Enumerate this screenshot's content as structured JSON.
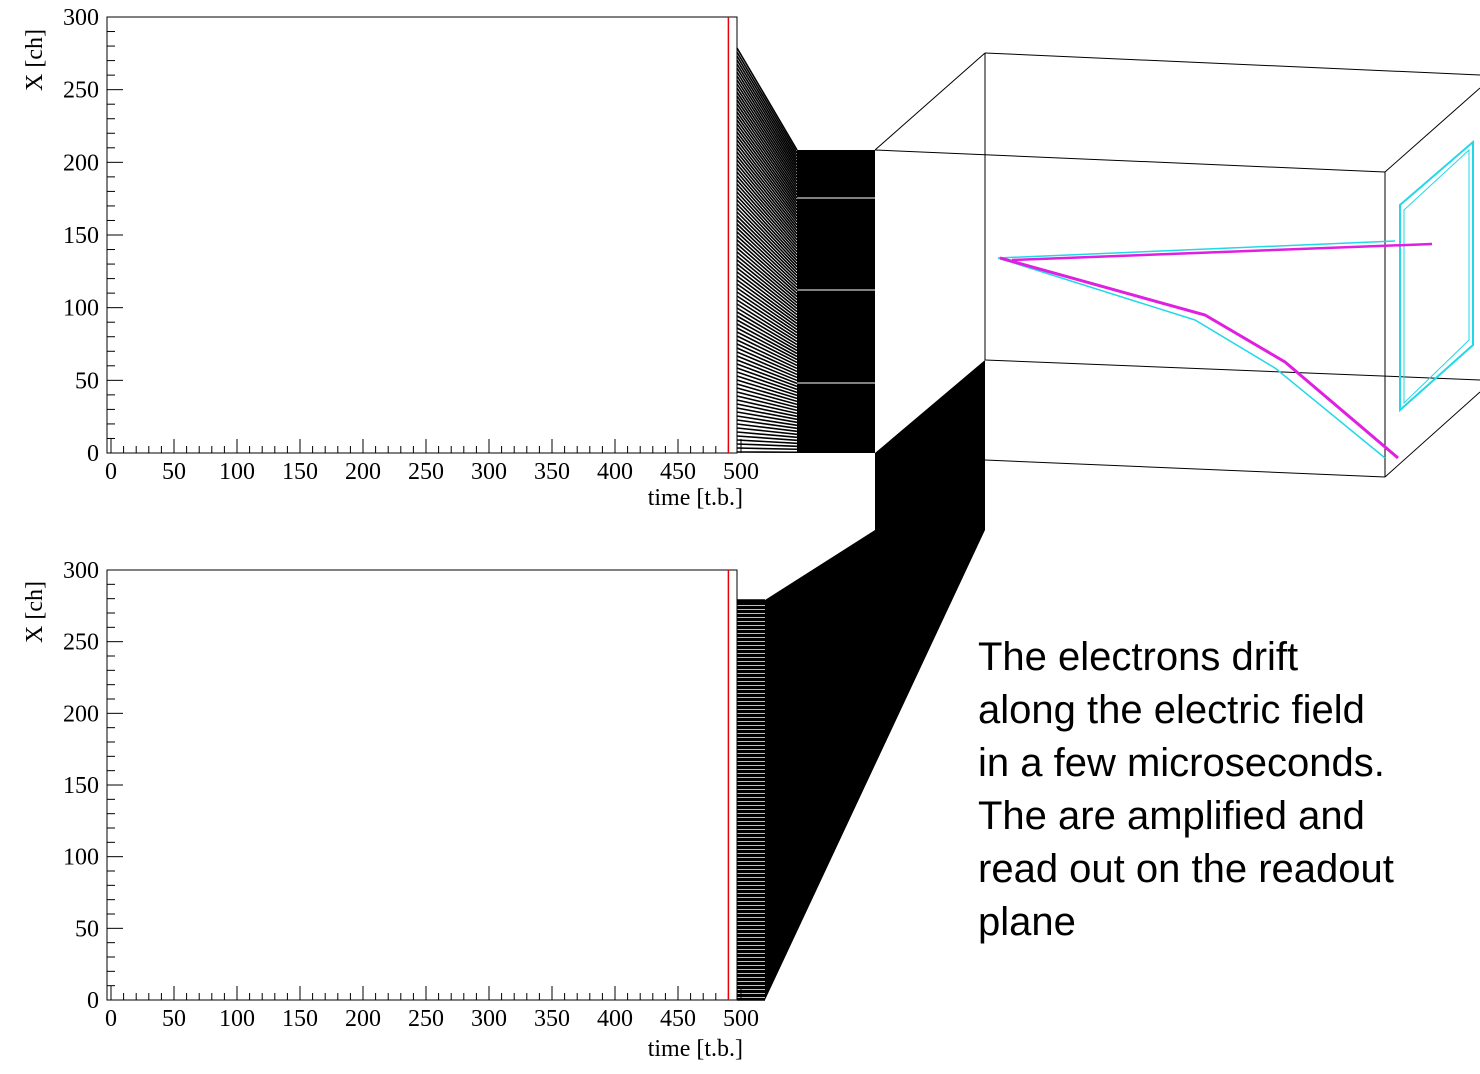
{
  "chart_data": [
    {
      "type": "scatter",
      "x_label": "time [t.b.]",
      "y_label": "X [ch]",
      "xlim": [
        0,
        500
      ],
      "ylim": [
        0,
        300
      ],
      "xticks": [
        0,
        50,
        100,
        150,
        200,
        250,
        300,
        350,
        400,
        450,
        500
      ],
      "yticks": [
        0,
        50,
        100,
        150,
        200,
        250,
        300
      ],
      "marker_x": 490,
      "marker_color": "#e8000b"
    },
    {
      "type": "scatter",
      "x_label": "time [t.b.]",
      "y_label": "X [ch]",
      "xlim": [
        0,
        500
      ],
      "ylim": [
        0,
        300
      ],
      "xticks": [
        0,
        50,
        100,
        150,
        200,
        250,
        300,
        350,
        400,
        450,
        500
      ],
      "yticks": [
        0,
        50,
        100,
        150,
        200,
        250,
        300
      ],
      "marker_x": 490,
      "marker_color": "#e8000b"
    }
  ],
  "annotation": [
    "The electrons drift",
    "along the electric field",
    "in a few microseconds.",
    "The are amplified and",
    "read out on the readout",
    "plane"
  ]
}
